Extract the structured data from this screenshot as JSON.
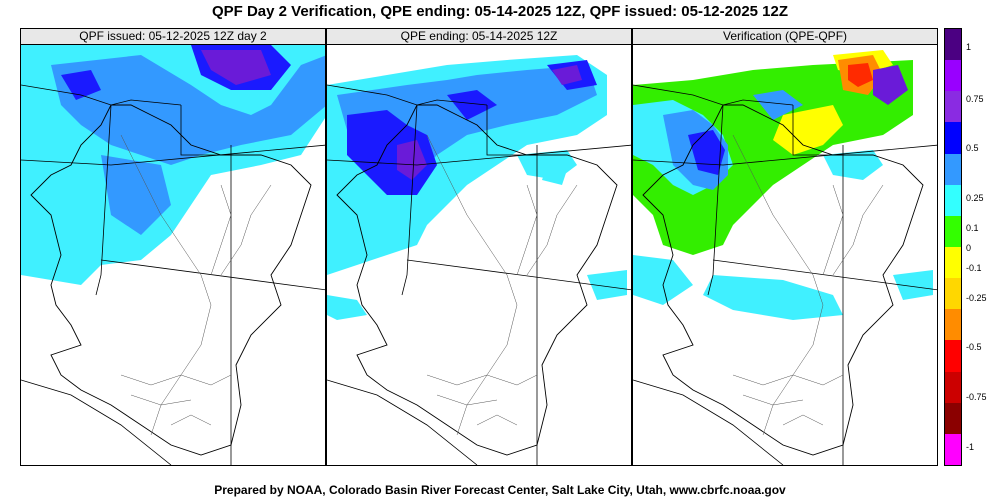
{
  "title": "QPF Day 2 Verification, QPE ending: 05-14-2025 12Z, QPF issued: 05-12-2025 12Z",
  "panels": [
    {
      "label": "QPF issued: 05-12-2025 12Z day 2"
    },
    {
      "label": "QPE ending: 05-14-2025 12Z"
    },
    {
      "label": "Verification (QPE-QPF)"
    }
  ],
  "legend": {
    "colors": [
      "#ff00ff",
      "#8b0000",
      "#cc0000",
      "#ff0000",
      "#ff8c00",
      "#ffd700",
      "#ffff00",
      "#33ff00",
      "#33ffff",
      "#3399ff",
      "#0000ff",
      "#8a2be2",
      "#9900ff",
      "#4b0082"
    ],
    "ticks": [
      "1",
      "0.75",
      "0.5",
      "0.25",
      "0.1",
      "0",
      "-0.1",
      "-0.25",
      "-0.5",
      "-0.75",
      "-1"
    ]
  },
  "colors": {
    "cyan": "#40f0ff",
    "light_blue": "#3399ff",
    "blue": "#1a1aff",
    "purple": "#6a1bd8",
    "green": "#33ee00",
    "yellow": "#ffff00",
    "orange": "#ff8c00",
    "red": "#ff2a00"
  },
  "footer": "Prepared by NOAA, Colorado Basin River Forecast Center, Salt Lake City, Utah, www.cbrfc.noaa.gov"
}
